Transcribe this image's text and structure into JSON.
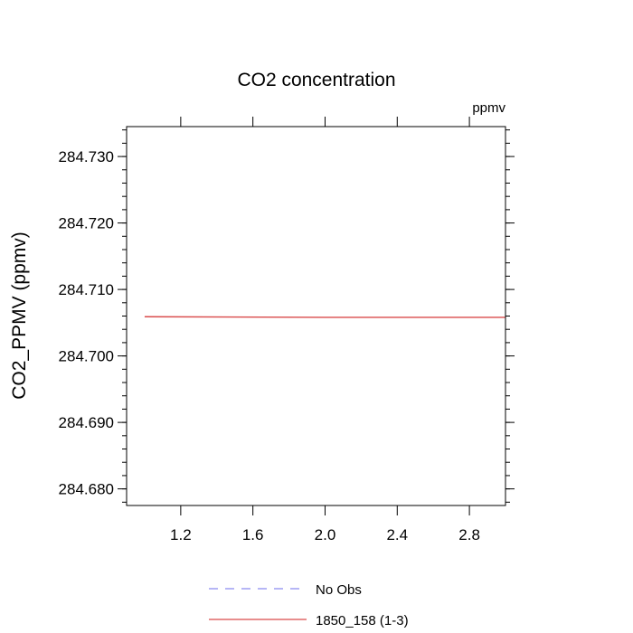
{
  "chart_data": {
    "type": "line",
    "title": "CO2 concentration",
    "units_label": "ppmv",
    "xlabel": "",
    "ylabel": "CO2_PPMV  (ppmv)",
    "xlim": [
      0.9,
      3.0
    ],
    "ylim": [
      284.6775,
      284.7345
    ],
    "x_ticks": [
      1.2,
      1.6,
      2.0,
      2.4,
      2.8
    ],
    "x_tick_labels": [
      "1.2",
      "1.6",
      "2.0",
      "2.4",
      "2.8"
    ],
    "y_ticks": [
      284.68,
      284.69,
      284.7,
      284.71,
      284.72,
      284.73
    ],
    "y_tick_labels": [
      "284.680",
      "284.690",
      "284.700",
      "284.710",
      "284.720",
      "284.730"
    ],
    "y_minor_step": 0.002,
    "x_minor_step": 0.1,
    "grid": false,
    "legend_position": "bottom-center",
    "series": [
      {
        "name": "No Obs",
        "color": "#8a8af0",
        "dash": "dashed",
        "x": [],
        "y": []
      },
      {
        "name": "1850_158 (1-3)",
        "color": "#d94a4a",
        "dash": "solid",
        "x": [
          1.0,
          2.0,
          3.0
        ],
        "y": [
          284.7059,
          284.7058,
          284.7058
        ]
      }
    ]
  }
}
